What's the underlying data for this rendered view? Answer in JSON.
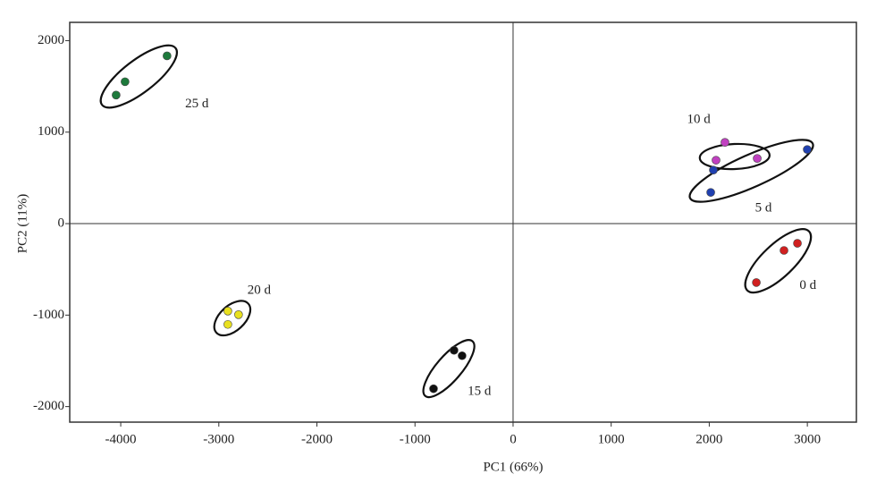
{
  "chart_data": {
    "type": "scatter",
    "xlabel": "PC1 (66%)",
    "ylabel": "PC2 (11%)",
    "xlim": [
      -4520,
      3500
    ],
    "ylim": [
      -2170,
      2200
    ],
    "xticks": [
      -4000,
      -3000,
      -2000,
      -1000,
      0,
      1000,
      2000,
      3000
    ],
    "yticks": [
      -2000,
      -1000,
      0,
      1000,
      2000
    ],
    "series": [
      {
        "name": "25 d",
        "color": "#1e7a3c",
        "x": [
          -4047,
          -3956,
          -3528
        ],
        "y": [
          1405,
          1551,
          1834
        ]
      },
      {
        "name": "20 d",
        "color": "#e8e020",
        "x": [
          -2908,
          -2799,
          -2908
        ],
        "y": [
          -956,
          -995,
          -1102
        ]
      },
      {
        "name": "15 d",
        "color": "#111111",
        "x": [
          -602,
          -520,
          -811
        ],
        "y": [
          -1385,
          -1444,
          -1805
        ]
      },
      {
        "name": "10 d",
        "color": "#c040c0",
        "x": [
          2160,
          2069,
          2489
        ],
        "y": [
          888,
          693,
          712
        ]
      },
      {
        "name": "5 d",
        "color": "#2040b0",
        "x": [
          2042,
          2015,
          2999
        ],
        "y": [
          585,
          341,
          810
        ]
      },
      {
        "name": "0 d",
        "color": "#d02020",
        "x": [
          2899,
          2762,
          2480
        ],
        "y": [
          -215,
          -293,
          -644
        ]
      }
    ]
  }
}
